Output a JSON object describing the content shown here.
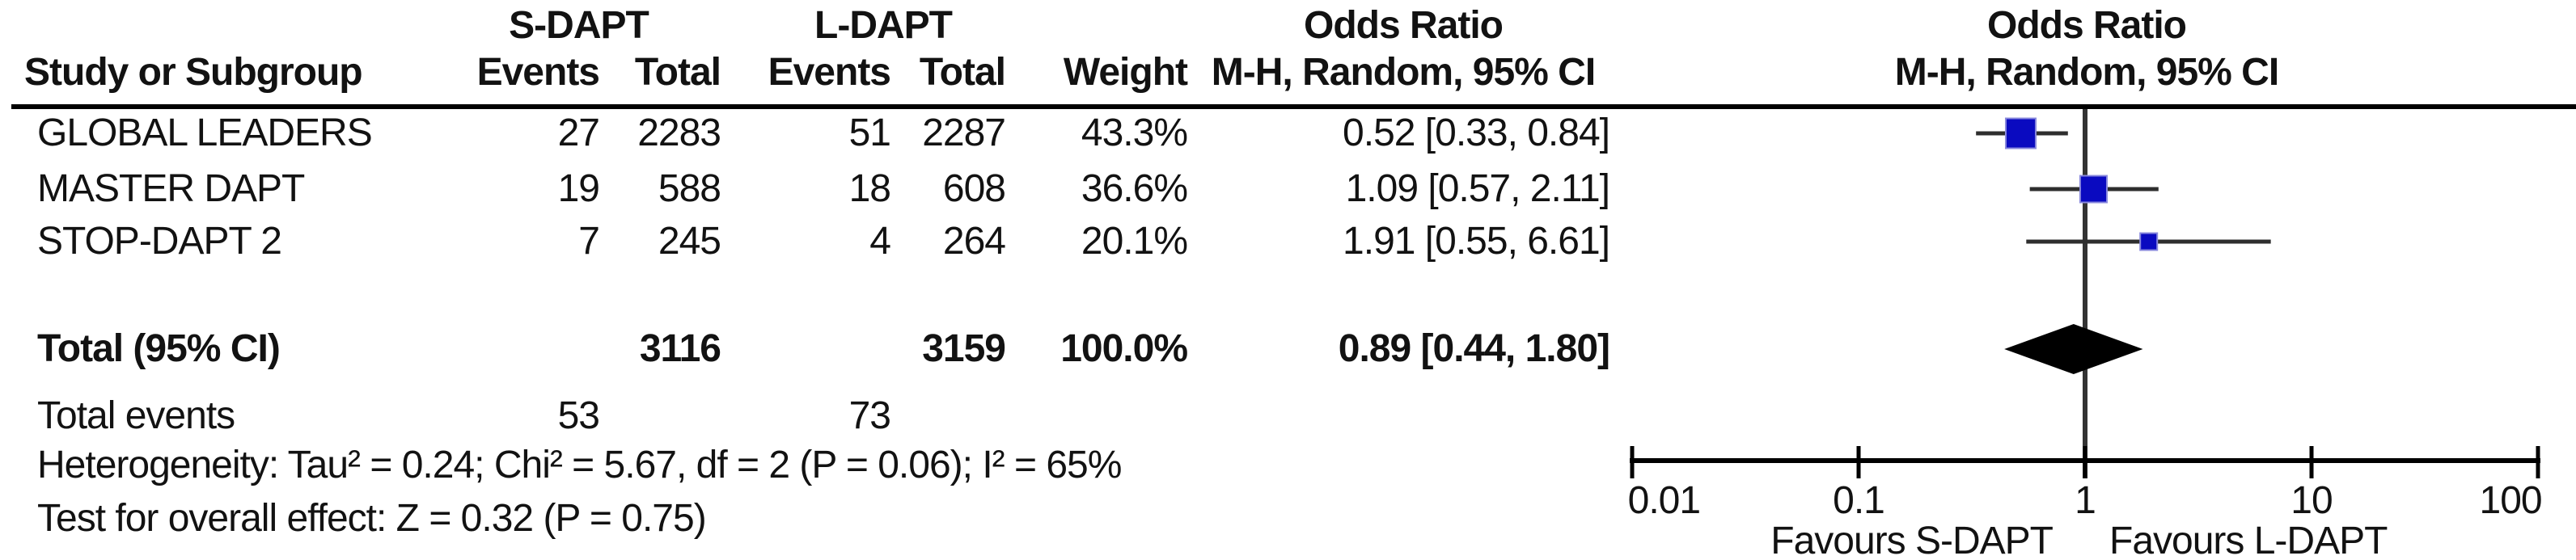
{
  "table": {
    "group1_header": "S-DAPT",
    "group2_header": "L-DAPT",
    "or_header": "Odds Ratio",
    "or_plot_header": "Odds Ratio",
    "col_study": "Study or Subgroup",
    "col_s_events": "Events",
    "col_s_total": "Total",
    "col_l_events": "Events",
    "col_l_total": "Total",
    "col_weight": "Weight",
    "col_mh": "M-H, Random, 95% CI",
    "col_mh_plot": "M-H, Random, 95% CI",
    "rows": [
      {
        "study": "GLOBAL LEADERS",
        "s_events": "27",
        "s_total": "2283",
        "l_events": "51",
        "l_total": "2287",
        "weight": "43.3%",
        "or_ci": "0.52 [0.33, 0.84]"
      },
      {
        "study": "MASTER DAPT",
        "s_events": "19",
        "s_total": "588",
        "l_events": "18",
        "l_total": "608",
        "weight": "36.6%",
        "or_ci": "1.09 [0.57, 2.11]"
      },
      {
        "study": "STOP-DAPT 2",
        "s_events": "7",
        "s_total": "245",
        "l_events": "4",
        "l_total": "264",
        "weight": "20.1%",
        "or_ci": "1.91 [0.55, 6.61]"
      }
    ],
    "total": {
      "label": "Total (95% CI)",
      "s_total": "3116",
      "l_total": "3159",
      "weight": "100.0%",
      "or_ci": "0.89 [0.44, 1.80]"
    },
    "total_events": {
      "label": "Total events",
      "s_events": "53",
      "l_events": "73"
    },
    "heterogeneity": "Heterogeneity: Tau² = 0.24; Chi² = 5.67, df = 2 (P = 0.06); I² = 65%",
    "overall_effect": "Test for overall effect: Z = 0.32 (P = 0.75)"
  },
  "chart_data": {
    "type": "scatter",
    "subtype": "forest-plot",
    "x_scale": "log10",
    "x_ticks": [
      0.01,
      0.1,
      1,
      10,
      100
    ],
    "x_tick_labels": [
      "0.01",
      "0.1",
      "1",
      "10",
      "100"
    ],
    "ref_line": 1,
    "studies": [
      {
        "name": "GLOBAL LEADERS",
        "or": 0.52,
        "ci_low": 0.33,
        "ci_high": 0.84,
        "weight_pct": 43.3
      },
      {
        "name": "MASTER DAPT",
        "or": 1.09,
        "ci_low": 0.57,
        "ci_high": 2.11,
        "weight_pct": 36.6
      },
      {
        "name": "STOP-DAPT 2",
        "or": 1.91,
        "ci_low": 0.55,
        "ci_high": 6.61,
        "weight_pct": 20.1
      }
    ],
    "total": {
      "or": 0.89,
      "ci_low": 0.44,
      "ci_high": 1.8
    },
    "xlabel_left": "Favours S-DAPT",
    "xlabel_right": "Favours L-DAPT",
    "legend_position": "none",
    "grid": false
  },
  "colors": {
    "square": "#0a0ac0",
    "square_edge": "#8888dd",
    "diamond": "#000000",
    "ci_line": "#2e2e2e",
    "axis": "#000000",
    "text": "#121212"
  }
}
